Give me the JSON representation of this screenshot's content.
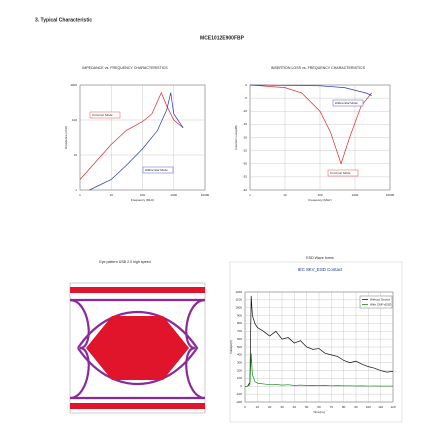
{
  "header": {
    "section": "3. Typical Characteristic",
    "part": "MCE1012E900FBP"
  },
  "eye": {
    "title": "Eye pattern USB 2.0 high speed"
  },
  "chart_data": [
    {
      "type": "line",
      "title": "IMPEDANCE vs. FREQUENCY CHARACTERISTICS",
      "xlabel": "Frequency (MHz)",
      "ylabel": "Impedance (ohm)",
      "log_x": true,
      "log_y": true,
      "grid": true,
      "xlim": [
        1,
        10000
      ],
      "ylim": [
        1,
        1000
      ],
      "xticks": [
        1,
        10,
        100,
        1000,
        10000
      ],
      "yticks": [
        1,
        10,
        100,
        1000
      ],
      "series": [
        {
          "name": "Common Mode",
          "color": "#e02828",
          "x": [
            1,
            3,
            10,
            30,
            100,
            200,
            400,
            600,
            1000,
            2000
          ],
          "values": [
            2,
            6,
            20,
            50,
            90,
            150,
            600,
            250,
            100,
            60
          ]
        },
        {
          "name": "Differential Mode",
          "color": "#2838c0",
          "x": [
            2,
            10,
            30,
            100,
            300,
            600,
            800,
            1000,
            2000
          ],
          "values": [
            1,
            2,
            5,
            15,
            50,
            200,
            600,
            150,
            60
          ]
        }
      ]
    },
    {
      "type": "line",
      "title": "INSERTION LOSS vs. FREQUENCY CHARACTERISTICS",
      "xlabel": "Frequency (MHz)",
      "ylabel": "Insertion Loss(dB)",
      "log_x": true,
      "log_y": false,
      "grid": true,
      "xlim": [
        1,
        10000
      ],
      "ylim": [
        -40,
        0
      ],
      "xticks": [
        1,
        10,
        100,
        1000,
        10000
      ],
      "yticks": [
        -40,
        -35,
        -30,
        -25,
        -20,
        -15,
        -10,
        -5,
        0
      ],
      "series": [
        {
          "name": "Common Mode",
          "color": "#e02828",
          "x": [
            1,
            10,
            30,
            100,
            200,
            400,
            700,
            1500,
            3000
          ],
          "values": [
            0,
            -1,
            -3,
            -10,
            -18,
            -30,
            -20,
            -8,
            -3
          ]
        },
        {
          "name": "Differential Mode",
          "color": "#2838c0",
          "x": [
            1,
            100,
            500,
            1000,
            2000,
            3000
          ],
          "values": [
            0,
            -0.3,
            -1,
            -2,
            -3,
            -4
          ]
        }
      ]
    },
    {
      "type": "line",
      "title": "ESD Wave forms",
      "subtitle": "IEC 8KV_ESD Contact",
      "xlabel": "Time(ns)",
      "ylabel": "Voltage(V)",
      "log_x": false,
      "log_y": false,
      "grid": true,
      "xlim": [
        0,
        120
      ],
      "ylim": [
        -200,
        1200
      ],
      "xticks": [
        0,
        10,
        20,
        30,
        40,
        50,
        60,
        70,
        80,
        90,
        100,
        110,
        120
      ],
      "yticks": [
        -200,
        -100,
        0,
        100,
        200,
        300,
        400,
        500,
        600,
        700,
        800,
        900,
        1000,
        1100,
        1200
      ],
      "series": [
        {
          "name": "Without Device",
          "color": "#111111",
          "x": [
            0,
            2,
            4,
            5,
            6,
            8,
            10,
            15,
            20,
            25,
            30,
            35,
            40,
            45,
            50,
            55,
            60,
            65,
            70,
            75,
            80,
            85,
            90,
            95,
            100,
            105,
            110,
            115,
            120
          ],
          "values": [
            0,
            0,
            50,
            1150,
            900,
            800,
            750,
            700,
            640,
            700,
            600,
            620,
            550,
            580,
            500,
            470,
            480,
            420,
            400,
            380,
            330,
            300,
            320,
            280,
            250,
            230,
            200,
            180,
            190
          ]
        },
        {
          "name": "With CMF+ESD",
          "color": "#1a8a1a",
          "x": [
            0,
            2,
            4,
            5,
            6,
            8,
            10,
            15,
            20,
            25,
            30,
            35,
            40,
            45,
            50,
            55,
            60,
            65,
            70,
            75,
            80,
            85,
            90,
            95,
            100,
            105,
            110,
            115,
            120
          ],
          "values": [
            0,
            0,
            20,
            420,
            150,
            60,
            40,
            30,
            20,
            25,
            15,
            20,
            10,
            15,
            10,
            12,
            8,
            10,
            6,
            8,
            5,
            6,
            4,
            5,
            3,
            4,
            2,
            3,
            2
          ]
        }
      ]
    }
  ]
}
